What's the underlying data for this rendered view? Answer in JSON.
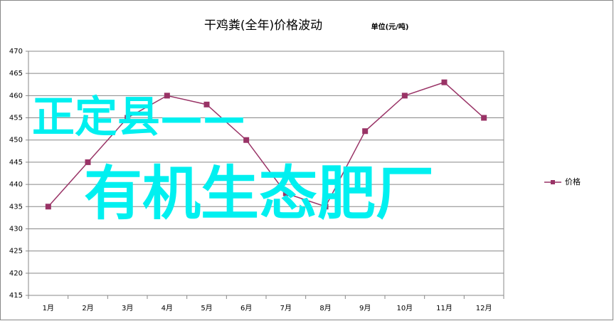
{
  "chart_data": {
    "type": "line",
    "title": "干鸡粪(全年)价格波动",
    "subtitle": "单位(元/吨)",
    "categories": [
      "1月",
      "2月",
      "3月",
      "4月",
      "5月",
      "6月",
      "7月",
      "8月",
      "9月",
      "10月",
      "11月",
      "12月"
    ],
    "series": [
      {
        "name": "价格",
        "color": "#993366",
        "values": [
          435,
          445,
          455,
          460,
          458,
          450,
          438,
          435,
          452,
          460,
          463,
          455
        ]
      }
    ],
    "ylim": [
      415,
      470
    ],
    "yticks": [
      415,
      420,
      425,
      430,
      435,
      440,
      445,
      450,
      455,
      460,
      465,
      470
    ],
    "grid": true,
    "legend": "right",
    "annotations": [
      "正定县——",
      "有机生态肥厂"
    ]
  }
}
